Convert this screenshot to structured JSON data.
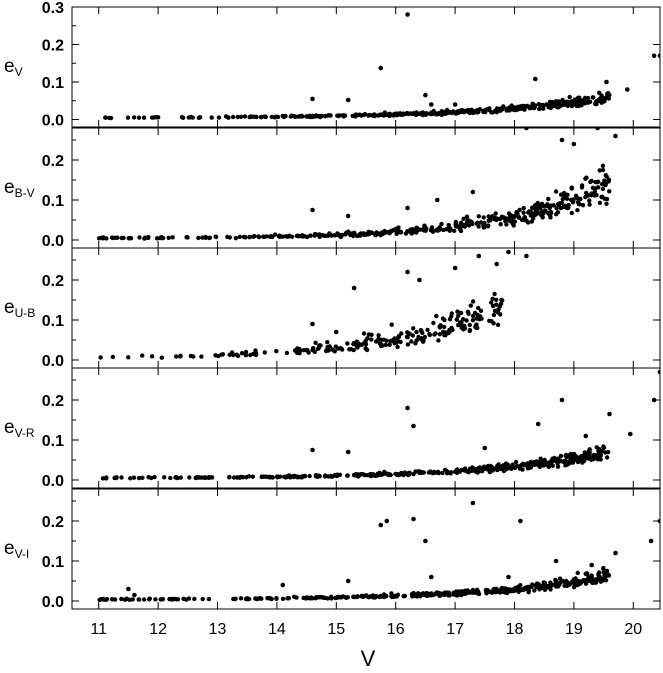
{
  "chart_data": {
    "type": "scatter",
    "xlabel": "V",
    "x_ticks": [
      11,
      12,
      13,
      14,
      15,
      16,
      17,
      18,
      19,
      20
    ],
    "xlim": [
      10.55,
      20.45
    ],
    "grid": false,
    "panels": [
      {
        "ylabel_main": "e",
        "ylabel_sub": "V",
        "ylim": [
          -0.02,
          0.3
        ],
        "y_ticks": [
          0.0,
          0.1,
          0.2,
          0.3
        ],
        "y_tick_labels": [
          "0.0",
          "0.1",
          "0.2",
          "0.3"
        ],
        "trend": {
          "a": 0.004,
          "b": 0.00075,
          "c": 0.5,
          "noise": 0.22
        },
        "outliers": [
          [
            16.2,
            0.28
          ],
          [
            15.75,
            0.137
          ],
          [
            18.35,
            0.108
          ],
          [
            14.6,
            0.055
          ],
          [
            15.2,
            0.052
          ],
          [
            16.5,
            0.065
          ],
          [
            17.0,
            0.04
          ],
          [
            20.35,
            0.17
          ],
          [
            20.45,
            0.17
          ],
          [
            19.9,
            0.08
          ],
          [
            19.55,
            0.1
          ],
          [
            16.6,
            0.04
          ]
        ]
      },
      {
        "ylabel_main": "e",
        "ylabel_sub": "B-V",
        "ylim": [
          -0.02,
          0.28
        ],
        "y_ticks": [
          0.0,
          0.1,
          0.2
        ],
        "y_tick_labels": [
          "0.0",
          "0.1",
          "0.2"
        ],
        "trend": {
          "a": 0.004,
          "b": 0.0008,
          "c": 0.6,
          "noise": 0.3
        },
        "outliers": [
          [
            14.6,
            0.075
          ],
          [
            15.2,
            0.06
          ],
          [
            16.2,
            0.08
          ],
          [
            18.2,
            0.28
          ],
          [
            19.4,
            0.28
          ],
          [
            19.7,
            0.26
          ],
          [
            18.8,
            0.25
          ],
          [
            19.0,
            0.24
          ],
          [
            16.7,
            0.1
          ],
          [
            17.3,
            0.12
          ]
        ]
      },
      {
        "ylabel_main": "e",
        "ylabel_sub": "U-B",
        "ylim": [
          -0.02,
          0.28
        ],
        "y_ticks": [
          0.0,
          0.1,
          0.2
        ],
        "y_tick_labels": [
          "0.0",
          "0.1",
          "0.2"
        ],
        "trend": {
          "a": 0.004,
          "b": 0.0027,
          "c": 0.57,
          "noise": 0.35
        },
        "x_max": 17.8,
        "outliers": [
          [
            15.3,
            0.18
          ],
          [
            16.2,
            0.22
          ],
          [
            16.4,
            0.2
          ],
          [
            17.4,
            0.26
          ],
          [
            17.7,
            0.24
          ],
          [
            18.2,
            0.26
          ],
          [
            17.9,
            0.27
          ],
          [
            17.0,
            0.23
          ],
          [
            14.6,
            0.09
          ],
          [
            15.0,
            0.07
          ]
        ]
      },
      {
        "ylabel_main": "e",
        "ylabel_sub": "V-R",
        "ylim": [
          -0.02,
          0.28
        ],
        "y_ticks": [
          0.0,
          0.1,
          0.2
        ],
        "y_tick_labels": [
          "0.0",
          "0.1",
          "0.2"
        ],
        "trend": {
          "a": 0.004,
          "b": 0.0009,
          "c": 0.5,
          "noise": 0.25
        },
        "outliers": [
          [
            16.2,
            0.18
          ],
          [
            16.3,
            0.135
          ],
          [
            18.8,
            0.2
          ],
          [
            20.45,
            0.27
          ],
          [
            20.35,
            0.2
          ],
          [
            19.6,
            0.165
          ],
          [
            19.95,
            0.115
          ],
          [
            14.6,
            0.075
          ],
          [
            15.2,
            0.07
          ],
          [
            18.4,
            0.14
          ],
          [
            17.5,
            0.08
          ],
          [
            19.2,
            0.11
          ]
        ]
      },
      {
        "ylabel_main": "e",
        "ylabel_sub": "V-I",
        "ylim": [
          -0.02,
          0.28
        ],
        "y_ticks": [
          0.0,
          0.1,
          0.2
        ],
        "y_tick_labels": [
          "0.0",
          "0.1",
          "0.2"
        ],
        "trend": {
          "a": 0.003,
          "b": 0.0008,
          "c": 0.5,
          "noise": 0.25
        },
        "outliers": [
          [
            15.75,
            0.19
          ],
          [
            15.85,
            0.2
          ],
          [
            16.3,
            0.205
          ],
          [
            17.3,
            0.245
          ],
          [
            18.1,
            0.2
          ],
          [
            16.5,
            0.15
          ],
          [
            20.45,
            0.2
          ],
          [
            20.3,
            0.15
          ],
          [
            11.5,
            0.03
          ],
          [
            11.6,
            0.015
          ],
          [
            14.1,
            0.04
          ],
          [
            19.7,
            0.12
          ],
          [
            18.7,
            0.1
          ],
          [
            19.3,
            0.09
          ],
          [
            15.2,
            0.05
          ],
          [
            17.9,
            0.06
          ],
          [
            16.6,
            0.06
          ]
        ]
      }
    ]
  }
}
